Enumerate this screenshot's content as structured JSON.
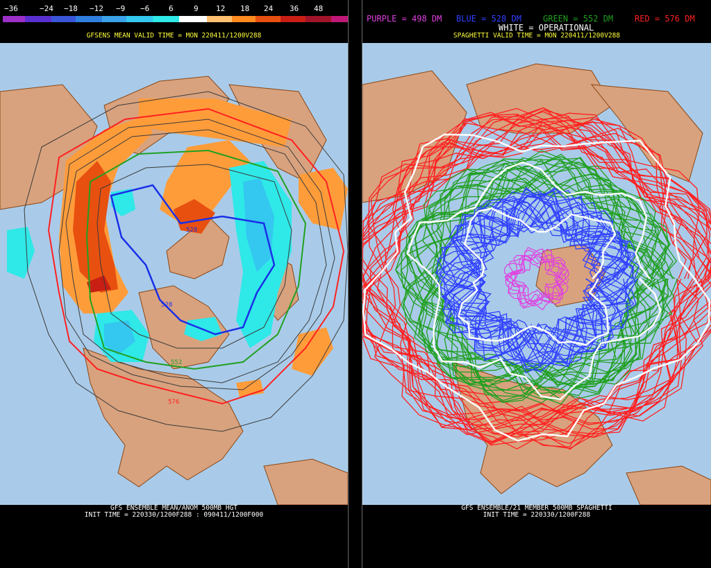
{
  "left_panel": {
    "legend": {
      "labels": [
        "−36",
        "−24",
        "−18",
        "−12",
        "−9",
        "−6",
        "6",
        "9",
        "12",
        "18",
        "24",
        "36",
        "48"
      ],
      "colors": [
        "#9b2fc8",
        "#5a2fd0",
        "#3a55d8",
        "#2f7fe0",
        "#3aa2e8",
        "#34c7f0",
        "#2fe8e8",
        "#ffffff",
        "#ffc070",
        "#ff8a20",
        "#e85010",
        "#c81e14",
        "#a0142a",
        "#c01878"
      ]
    },
    "valid_time": "GFSENS MEAN VALID TIME = MON 220411/1200V288",
    "contour_labels": [
      "528",
      "528",
      "552",
      "576"
    ],
    "footer_line1": "GFS ENSEMBLE MEAN/ANOM 500MB HGT",
    "footer_line2": "INIT TIME = 220330/1200F288 : 090411/1200F000"
  },
  "right_panel": {
    "legend": {
      "purple": "PURPLE = 498 DM",
      "blue": "BLUE = 528 DM",
      "green": "GREEN = 552 DM",
      "red": "RED = 576 DM",
      "white": "WHITE = OPERATIONAL",
      "colors": {
        "purple": "#e040e0",
        "blue": "#3040ff",
        "green": "#20a020",
        "red": "#ff2020",
        "white": "#ffffff"
      }
    },
    "valid_time": "SPAGHETTI VALID TIME = MON 220411/1200V288",
    "footer_line1": "GFS ENSEMBLE/21 MEMBER 500MB SPAGHETTI",
    "footer_line2": "INIT TIME = 220330/1200F288"
  },
  "map_colors": {
    "ocean": "#a9cbe9",
    "land": "#d8a27e",
    "border": "#8b4513"
  }
}
